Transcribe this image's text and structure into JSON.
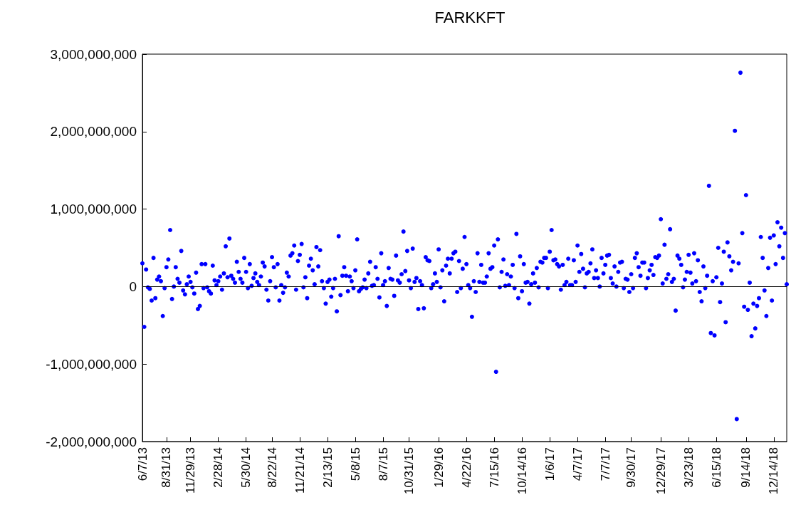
{
  "chart_data": {
    "type": "scatter",
    "title": "FARKKFT",
    "color": "#0000ff",
    "marker": "circle",
    "grid": false,
    "ref_lines": [
      {
        "axis": "y",
        "value": 0,
        "color": "#000000"
      }
    ],
    "ylim": [
      -2000000000,
      3000000000
    ],
    "yticks": [
      {
        "value": -2000000000,
        "label": "-2,000,000,000"
      },
      {
        "value": -1000000000,
        "label": "-1,000,000,000"
      },
      {
        "value": 0,
        "label": "0"
      },
      {
        "value": 1000000000,
        "label": "1,000,000,000"
      },
      {
        "value": 2000000000,
        "label": "2,000,000,000"
      },
      {
        "value": 3000000000,
        "label": "3,000,000,000"
      }
    ],
    "categories": [
      "6/7/13",
      null,
      null,
      null,
      null,
      null,
      null,
      null,
      null,
      null,
      null,
      null,
      null,
      "8/31/13",
      null,
      null,
      null,
      null,
      null,
      null,
      null,
      null,
      null,
      null,
      null,
      null,
      "11/29/13",
      null,
      null,
      null,
      null,
      null,
      null,
      null,
      null,
      null,
      null,
      null,
      null,
      null,
      null,
      "2/28/14",
      null,
      null,
      null,
      null,
      null,
      null,
      null,
      null,
      null,
      null,
      null,
      null,
      null,
      null,
      "5/30/14",
      null,
      null,
      null,
      null,
      null,
      null,
      null,
      null,
      null,
      null,
      null,
      null,
      null,
      "8/22/14",
      null,
      null,
      null,
      null,
      null,
      null,
      null,
      null,
      null,
      null,
      null,
      null,
      null,
      null,
      "11/21/14",
      null,
      null,
      null,
      null,
      null,
      null,
      null,
      null,
      null,
      null,
      null,
      null,
      null,
      null,
      "2/13/15",
      null,
      null,
      null,
      null,
      null,
      null,
      null,
      null,
      null,
      null,
      null,
      null,
      null,
      null,
      "5/8/15",
      null,
      null,
      null,
      null,
      null,
      null,
      null,
      null,
      null,
      null,
      null,
      null,
      null,
      null,
      "8/7/15",
      null,
      null,
      null,
      null,
      null,
      null,
      null,
      null,
      null,
      null,
      null,
      null,
      null,
      "10/31/15",
      null,
      null,
      null,
      null,
      null,
      null,
      null,
      null,
      null,
      null,
      null,
      null,
      null,
      null,
      null,
      "1/29/16",
      null,
      null,
      null,
      null,
      null,
      null,
      null,
      null,
      null,
      null,
      null,
      null,
      null,
      null,
      "4/22/16",
      null,
      null,
      null,
      null,
      null,
      null,
      null,
      null,
      null,
      null,
      null,
      null,
      null,
      null,
      "7/15/16",
      null,
      null,
      null,
      null,
      null,
      null,
      null,
      null,
      null,
      null,
      null,
      null,
      null,
      null,
      "10/14/16",
      null,
      null,
      null,
      null,
      null,
      null,
      null,
      null,
      null,
      null,
      null,
      null,
      null,
      null,
      "1/6/17",
      null,
      null,
      null,
      null,
      null,
      null,
      null,
      null,
      null,
      null,
      null,
      null,
      null,
      null,
      "4/7/17",
      null,
      null,
      null,
      null,
      null,
      null,
      null,
      null,
      null,
      null,
      null,
      null,
      null,
      null,
      "7/7/17",
      null,
      null,
      null,
      null,
      null,
      null,
      null,
      null,
      null,
      null,
      null,
      null,
      null,
      "9/30/17",
      null,
      null,
      null,
      null,
      null,
      null,
      null,
      null,
      null,
      null,
      null,
      null,
      null,
      null,
      null,
      "12/29/17",
      null,
      null,
      null,
      null,
      null,
      null,
      null,
      null,
      null,
      null,
      null,
      null,
      null,
      null,
      "3/23/18",
      null,
      null,
      null,
      null,
      null,
      null,
      null,
      null,
      null,
      null,
      null,
      null,
      null,
      null,
      "6/15/18",
      null,
      null,
      null,
      null,
      null,
      null,
      null,
      null,
      null,
      null,
      null,
      null,
      null,
      null,
      null,
      "9/14/18",
      null,
      null,
      null,
      null,
      null,
      null,
      null,
      null,
      null,
      null,
      null,
      null,
      null,
      null,
      "12/14/18",
      null,
      null,
      null,
      null,
      null,
      null,
      null
    ],
    "values": [
      300000000.0,
      -520000000.0,
      220000000.0,
      -10000000.0,
      -30000000.0,
      -180000000.0,
      370000000.0,
      -150000000.0,
      90000000.0,
      130000000.0,
      70000000.0,
      -380000000.0,
      -20000000.0,
      250000000.0,
      350000000.0,
      730000000.0,
      -160000000.0,
      0,
      250000000.0,
      100000000.0,
      50000000.0,
      460000000.0,
      -50000000.0,
      -100000000.0,
      30000000.0,
      130000000.0,
      60000000.0,
      -10000000.0,
      -90000000.0,
      180000000.0,
      -290000000.0,
      -250000000.0,
      290000000.0,
      -20000000.0,
      290000000.0,
      -10000000.0,
      -60000000.0,
      -90000000.0,
      270000000.0,
      80000000.0,
      20000000.0,
      70000000.0,
      130000000.0,
      -40000000.0,
      170000000.0,
      520000000.0,
      120000000.0,
      620000000.0,
      140000000.0,
      100000000.0,
      50000000.0,
      320000000.0,
      190000000.0,
      100000000.0,
      50000000.0,
      370000000.0,
      190000000.0,
      -20000000.0,
      290000000.0,
      10000000.0,
      110000000.0,
      170000000.0,
      60000000.0,
      20000000.0,
      130000000.0,
      310000000.0,
      260000000.0,
      -40000000.0,
      -180000000.0,
      70000000.0,
      380000000.0,
      250000000.0,
      -10000000.0,
      290000000.0,
      -180000000.0,
      20000000.0,
      -80000000.0,
      -10000000.0,
      180000000.0,
      130000000.0,
      400000000.0,
      430000000.0,
      530000000.0,
      -40000000.0,
      330000000.0,
      410000000.0,
      550000000.0,
      -10000000.0,
      120000000.0,
      -150000000.0,
      270000000.0,
      360000000.0,
      210000000.0,
      30000000.0,
      510000000.0,
      260000000.0,
      470000000.0,
      70000000.0,
      -20000000.0,
      -220000000.0,
      60000000.0,
      90000000.0,
      -130000000.0,
      -20000000.0,
      100000000.0,
      -320000000.0,
      650000000.0,
      -110000000.0,
      140000000.0,
      250000000.0,
      140000000.0,
      -60000000.0,
      130000000.0,
      70000000.0,
      -20000000.0,
      210000000.0,
      610000000.0,
      -60000000.0,
      -30000000.0,
      -10000000.0,
      90000000.0,
      -20000000.0,
      170000000.0,
      320000000.0,
      10000000.0,
      20000000.0,
      250000000.0,
      100000000.0,
      -140000000.0,
      430000000.0,
      20000000.0,
      70000000.0,
      -250000000.0,
      240000000.0,
      100000000.0,
      90000000.0,
      -120000000.0,
      400000000.0,
      80000000.0,
      50000000.0,
      160000000.0,
      710000000.0,
      200000000.0,
      460000000.0,
      80000000.0,
      -20000000.0,
      490000000.0,
      60000000.0,
      110000000.0,
      -290000000.0,
      70000000.0,
      20000000.0,
      -280000000.0,
      380000000.0,
      340000000.0,
      330000000.0,
      -20000000.0,
      30000000.0,
      170000000.0,
      60000000.0,
      480000000.0,
      -10000000.0,
      210000000.0,
      -190000000.0,
      270000000.0,
      360000000.0,
      170000000.0,
      360000000.0,
      430000000.0,
      450000000.0,
      -70000000.0,
      330000000.0,
      -20000000.0,
      230000000.0,
      640000000.0,
      290000000.0,
      20000000.0,
      -20000000.0,
      -390000000.0,
      70000000.0,
      -70000000.0,
      430000000.0,
      60000000.0,
      280000000.0,
      50000000.0,
      50000000.0,
      130000000.0,
      430000000.0,
      230000000.0,
      250000000.0,
      530000000.0,
      -1100000000.0,
      610000000.0,
      -10000000.0,
      190000000.0,
      350000000.0,
      10000000.0,
      160000000.0,
      20000000.0,
      130000000.0,
      280000000.0,
      -20000000.0,
      680000000.0,
      -150000000.0,
      390000000.0,
      -60000000.0,
      290000000.0,
      50000000.0,
      60000000.0,
      -220000000.0,
      30000000.0,
      170000000.0,
      50000000.0,
      240000000.0,
      -10000000.0,
      320000000.0,
      310000000.0,
      370000000.0,
      370000000.0,
      -20000000.0,
      450000000.0,
      730000000.0,
      340000000.0,
      350000000.0,
      290000000.0,
      260000000.0,
      -40000000.0,
      280000000.0,
      20000000.0,
      60000000.0,
      360000000.0,
      20000000.0,
      20000000.0,
      340000000.0,
      60000000.0,
      530000000.0,
      190000000.0,
      420000000.0,
      230000000.0,
      -10000000.0,
      170000000.0,
      190000000.0,
      300000000.0,
      480000000.0,
      110000000.0,
      210000000.0,
      110000000.0,
      0,
      370000000.0,
      170000000.0,
      280000000.0,
      400000000.0,
      410000000.0,
      110000000.0,
      40000000.0,
      260000000.0,
      0,
      190000000.0,
      310000000.0,
      320000000.0,
      -20000000.0,
      100000000.0,
      90000000.0,
      -70000000.0,
      160000000.0,
      -20000000.0,
      370000000.0,
      430000000.0,
      250000000.0,
      140000000.0,
      310000000.0,
      310000000.0,
      -20000000.0,
      110000000.0,
      210000000.0,
      280000000.0,
      150000000.0,
      380000000.0,
      370000000.0,
      400000000.0,
      870000000.0,
      40000000.0,
      540000000.0,
      100000000.0,
      160000000.0,
      740000000.0,
      60000000.0,
      100000000.0,
      -310000000.0,
      400000000.0,
      360000000.0,
      280000000.0,
      -10000000.0,
      90000000.0,
      190000000.0,
      410000000.0,
      180000000.0,
      40000000.0,
      430000000.0,
      70000000.0,
      340000000.0,
      -70000000.0,
      -190000000.0,
      260000000.0,
      -20000000.0,
      140000000.0,
      1300000000.0,
      -600000000.0,
      70000000.0,
      -630000000.0,
      120000000.0,
      500000000.0,
      -200000000.0,
      40000000.0,
      450000000.0,
      -460000000.0,
      570000000.0,
      390000000.0,
      210000000.0,
      320000000.0,
      2010000000.0,
      -1710000000.0,
      300000000.0,
      2760000000.0,
      690000000.0,
      -260000000.0,
      1180000000.0,
      -300000000.0,
      50000000.0,
      -640000000.0,
      -220000000.0,
      -540000000.0,
      -250000000.0,
      -150000000.0,
      640000000.0,
      370000000.0,
      -50000000.0,
      -380000000.0,
      240000000.0,
      630000000.0,
      -180000000.0,
      660000000.0,
      290000000.0,
      830000000.0,
      520000000.0,
      760000000.0,
      370000000.0,
      690000000.0,
      30000000.0
    ]
  }
}
